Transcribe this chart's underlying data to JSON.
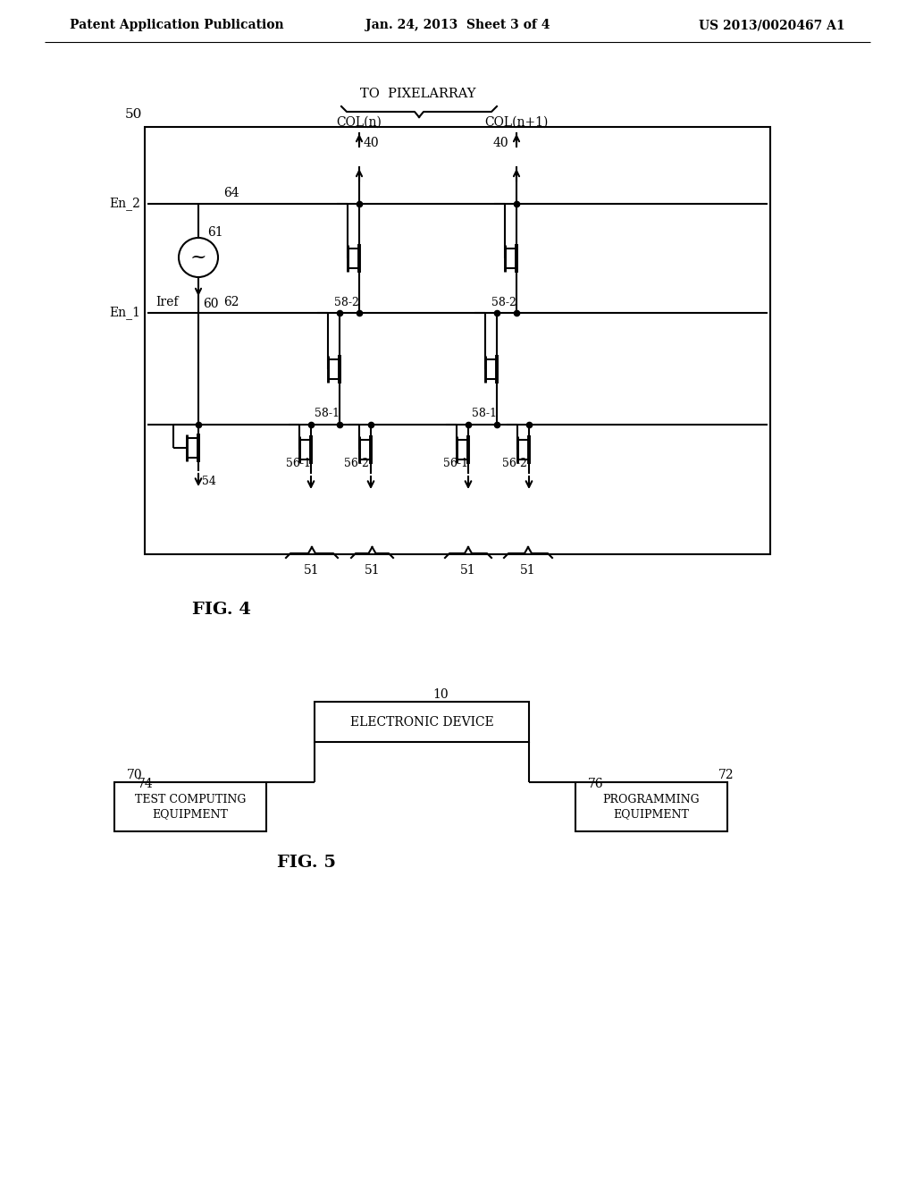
{
  "bg_color": "#ffffff",
  "header_left": "Patent Application Publication",
  "header_center": "Jan. 24, 2013  Sheet 3 of 4",
  "header_right": "US 2013/0020467 A1",
  "fig4_label": "FIG. 4",
  "fig5_label": "FIG. 5"
}
